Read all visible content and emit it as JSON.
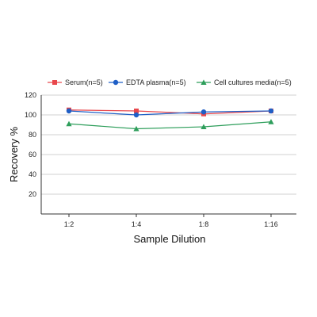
{
  "chart_data": {
    "type": "line",
    "categories": [
      "1:2",
      "1:4",
      "1:8",
      "1:16"
    ],
    "series": [
      {
        "name": "Serum(n=5)",
        "values": [
          105,
          104,
          101,
          104
        ],
        "color": "#e8474c",
        "marker": "square"
      },
      {
        "name": "EDTA plasma(n=5)",
        "values": [
          104,
          100,
          103,
          104
        ],
        "color": "#1f5fc6",
        "marker": "circle"
      },
      {
        "name": "Cell cultures media(n=5)",
        "values": [
          91,
          86,
          88,
          93
        ],
        "color": "#2e9e5b",
        "marker": "triangle"
      }
    ],
    "xlabel": "Sample Dilution",
    "ylabel": "Recovery %",
    "yticks": [
      20,
      40,
      60,
      80,
      100,
      120
    ],
    "ylim": [
      0,
      120
    ],
    "grid": true,
    "legend_position": "top"
  }
}
